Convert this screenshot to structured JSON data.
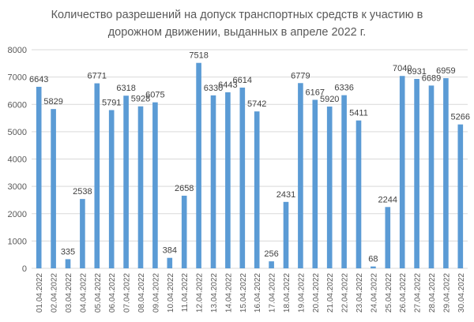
{
  "chart_data": {
    "type": "bar",
    "title_lines": [
      "Количество разрешений на допуск транспортных средств к участию в",
      "дорожном движении, выданных в апреле 2022 г."
    ],
    "categories": [
      "01.04.2022",
      "02.04.2022",
      "03.04.2022",
      "04.04.2022",
      "05.04.2022",
      "06.04.2022",
      "07.04.2022",
      "08.04.2022",
      "09.04.2022",
      "10.04.2022",
      "11.04.2022",
      "12.04.2022",
      "13.04.2022",
      "14.04.2022",
      "15.04.2022",
      "16.04.2022",
      "17.04.2022",
      "18.04.2022",
      "19.04.2022",
      "20.04.2022",
      "21.04.2022",
      "22.04.2022",
      "23.04.2022",
      "24.04.2022",
      "25.04.2022",
      "26.04.2022",
      "27.04.2022",
      "28.04.2022",
      "29.04.2022",
      "30.04.2022"
    ],
    "values": [
      6643,
      5829,
      335,
      2538,
      6771,
      5791,
      6318,
      5928,
      6075,
      384,
      2658,
      7518,
      6330,
      6443,
      6614,
      5742,
      256,
      2431,
      6779,
      6167,
      5920,
      6336,
      5411,
      68,
      2244,
      7040,
      6931,
      6689,
      6959,
      5266
    ],
    "data_labels": [
      "6643",
      "5829",
      "335",
      "2538",
      "6771",
      "5791",
      "6318",
      "5928",
      "6075",
      "384",
      "2658",
      "7518",
      "6330",
      "6443",
      "6614",
      "5742",
      "256",
      "2431",
      "6779",
      "6167",
      "5920",
      "6336",
      "5411",
      "68",
      "2244",
      "7040",
      "6931",
      "6689",
      "6959",
      "5266"
    ],
    "y_ticks": [
      "0",
      "1000",
      "2000",
      "3000",
      "4000",
      "5000",
      "6000",
      "7000",
      "8000"
    ],
    "ylim": [
      0,
      8000
    ],
    "xlabel": "",
    "ylabel": "",
    "grid": true,
    "legend": "none",
    "colors": {
      "bar": "#5b9bd5",
      "grid": "#d9d9d9",
      "text": "#595959",
      "label": "#404040"
    }
  }
}
